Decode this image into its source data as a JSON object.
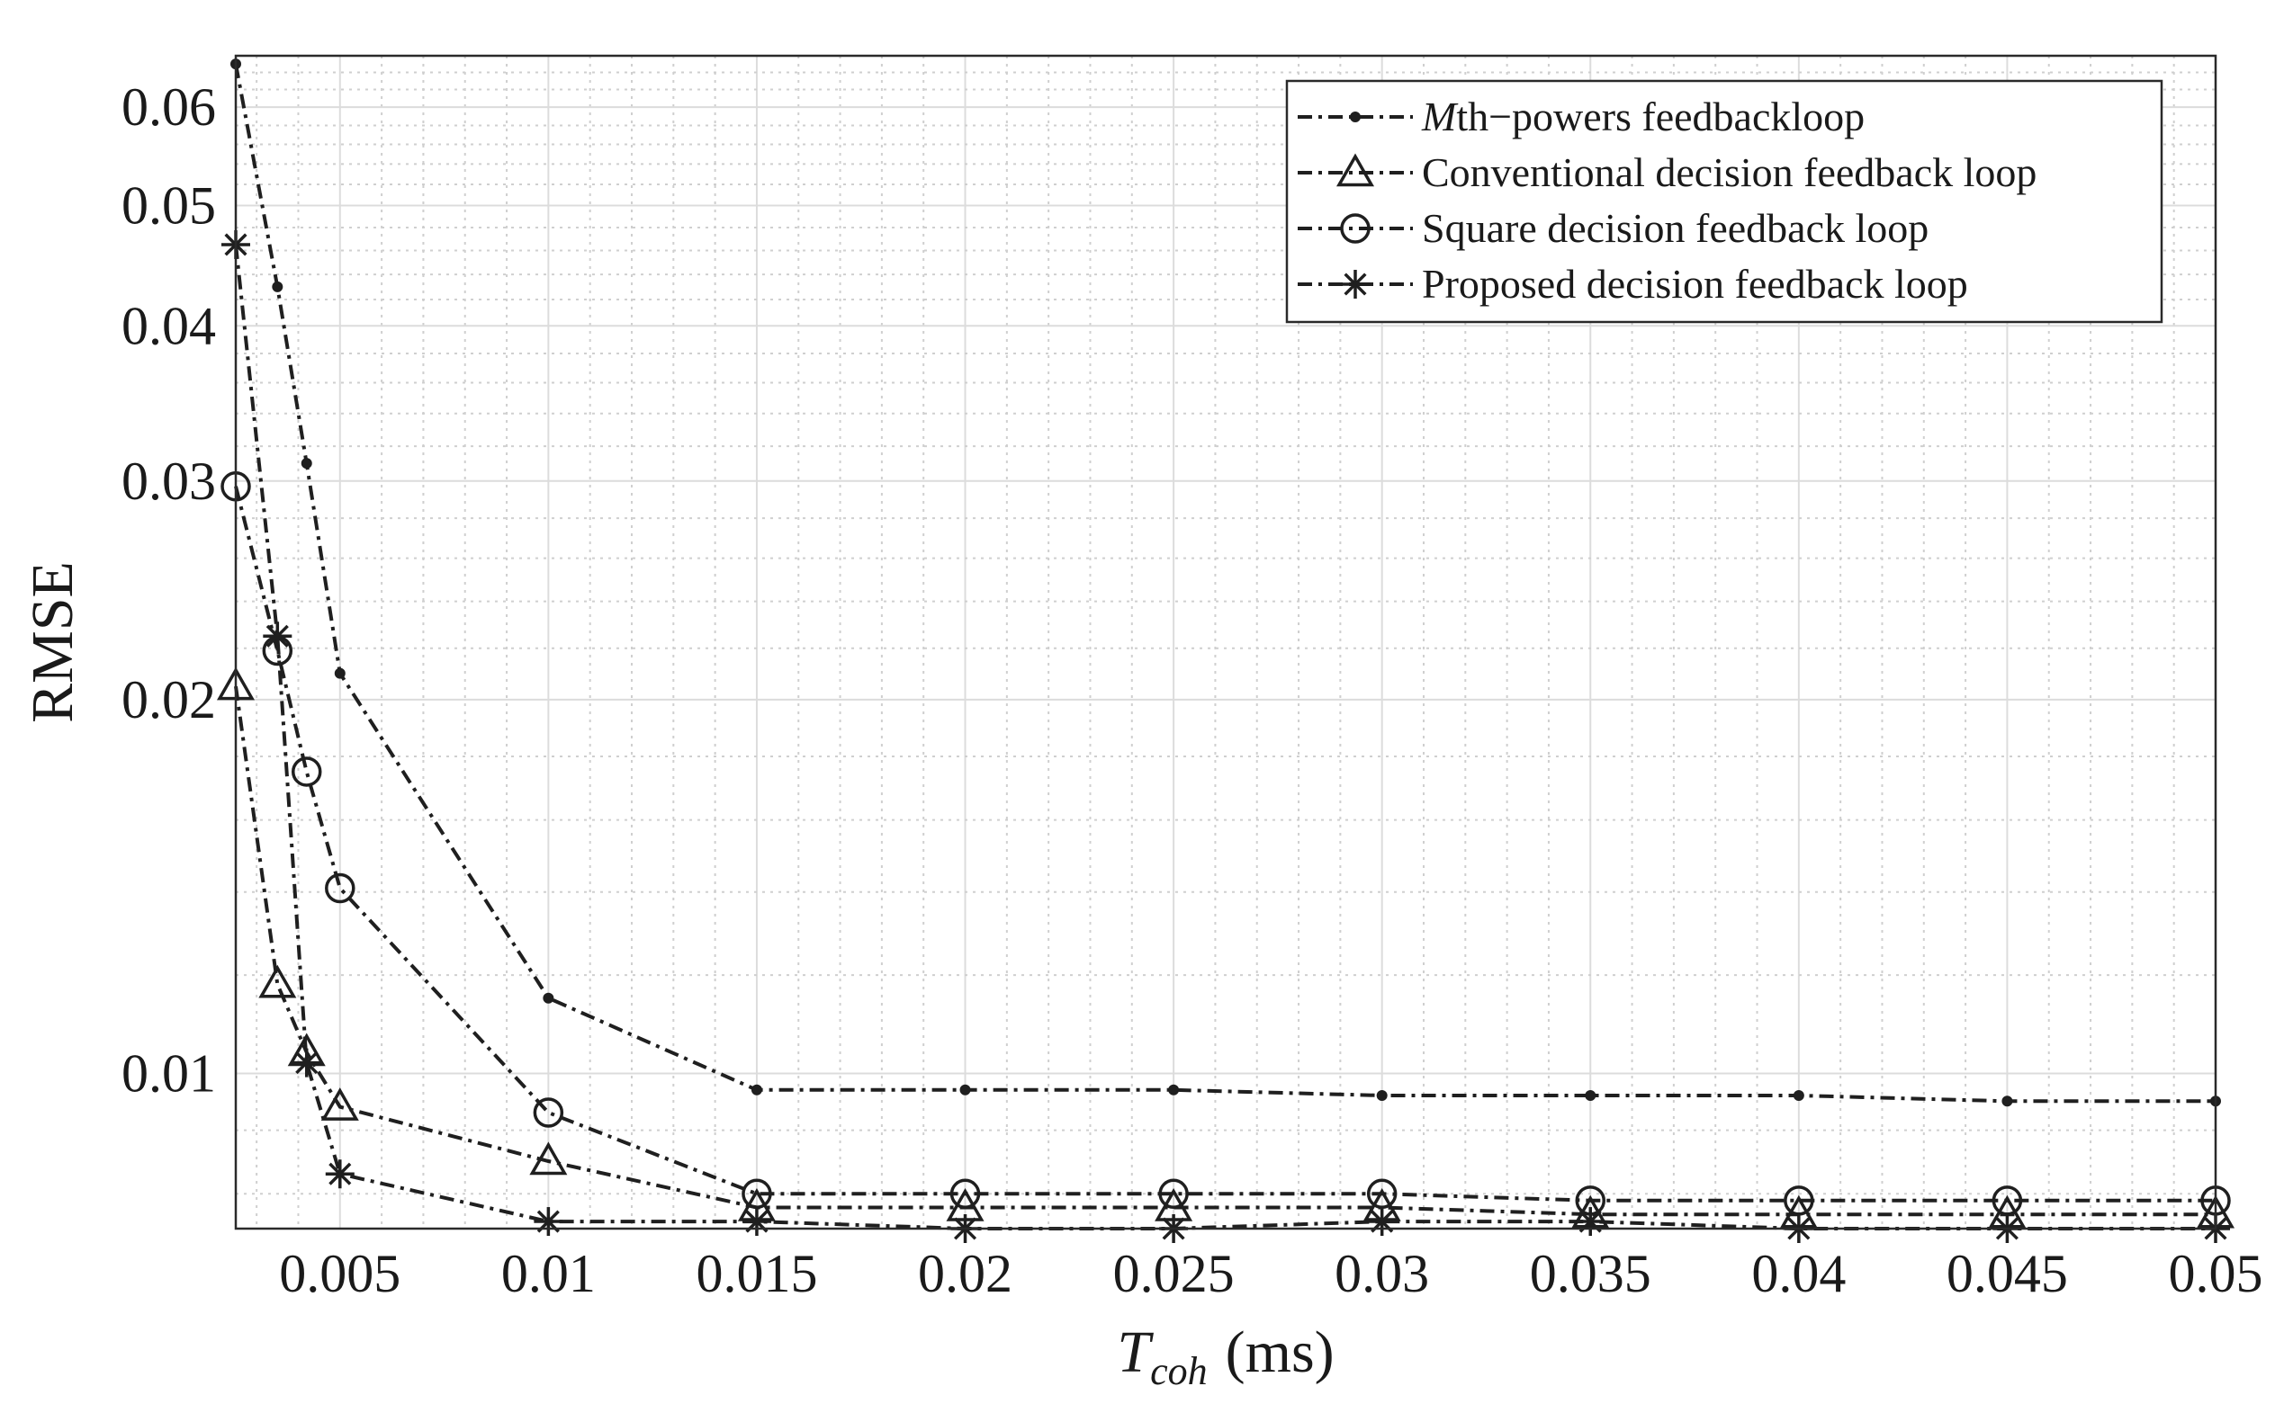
{
  "chart_data": {
    "type": "line",
    "title": "",
    "xlabel": {
      "main": "T",
      "subscript": "coh",
      "unit": "(ms)"
    },
    "ylabel": "RMSE",
    "xlim": [
      0.0025,
      0.05
    ],
    "ylim": [
      0.0075,
      0.066
    ],
    "yscale": "log",
    "grid": true,
    "minor_grid": true,
    "legend_position": "top-right",
    "x_ticks": [
      0.005,
      0.01,
      0.015,
      0.02,
      0.025,
      0.03,
      0.035,
      0.04,
      0.045,
      0.05
    ],
    "x_tick_labels": [
      "0.005",
      "0.01",
      "0.015",
      "0.02",
      "0.025",
      "0.03",
      "0.035",
      "0.04",
      "0.045",
      "0.05"
    ],
    "y_ticks": [
      0.01,
      0.02,
      0.03,
      0.04,
      0.05,
      0.06
    ],
    "y_tick_labels": [
      "0.01",
      "0.02",
      "0.03",
      "0.04",
      "0.05",
      "0.06"
    ],
    "series": [
      {
        "name": "Mth−powers feedbackloop",
        "legend_italic_prefix": "M",
        "legend_rest": "th−powers feedbackloop",
        "marker": "dot",
        "x": [
          0.0025,
          0.0035,
          0.0042,
          0.005,
          0.01,
          0.015,
          0.02,
          0.025,
          0.03,
          0.035,
          0.04,
          0.045,
          0.05
        ],
        "y": [
          0.065,
          0.043,
          0.031,
          0.021,
          0.0115,
          0.0097,
          0.0097,
          0.0097,
          0.0096,
          0.0096,
          0.0096,
          0.0095,
          0.0095
        ]
      },
      {
        "name": "Conventional decision feedback loop",
        "marker": "triangle",
        "x": [
          0.0025,
          0.0035,
          0.0042,
          0.005,
          0.01,
          0.015,
          0.02,
          0.025,
          0.03,
          0.035,
          0.04,
          0.045,
          0.05
        ],
        "y": [
          0.0205,
          0.0118,
          0.0104,
          0.0094,
          0.0085,
          0.0078,
          0.0078,
          0.0078,
          0.0078,
          0.0077,
          0.0077,
          0.0077,
          0.0077
        ]
      },
      {
        "name": "Square decision feedback loop",
        "marker": "circle",
        "x": [
          0.0025,
          0.0035,
          0.0042,
          0.005,
          0.01,
          0.015,
          0.02,
          0.025,
          0.03,
          0.035,
          0.04,
          0.045,
          0.05
        ],
        "y": [
          0.0297,
          0.0219,
          0.0175,
          0.0141,
          0.0093,
          0.008,
          0.008,
          0.008,
          0.008,
          0.0079,
          0.0079,
          0.0079,
          0.0079
        ]
      },
      {
        "name": "Proposed decision feedback loop",
        "marker": "asterisk",
        "x": [
          0.0025,
          0.0035,
          0.0042,
          0.005,
          0.01,
          0.015,
          0.02,
          0.025,
          0.03,
          0.035,
          0.04,
          0.045,
          0.05
        ],
        "y": [
          0.0465,
          0.0225,
          0.0102,
          0.0083,
          0.0076,
          0.0076,
          0.0075,
          0.0075,
          0.0076,
          0.0076,
          0.0075,
          0.0075,
          0.0075
        ]
      }
    ]
  }
}
